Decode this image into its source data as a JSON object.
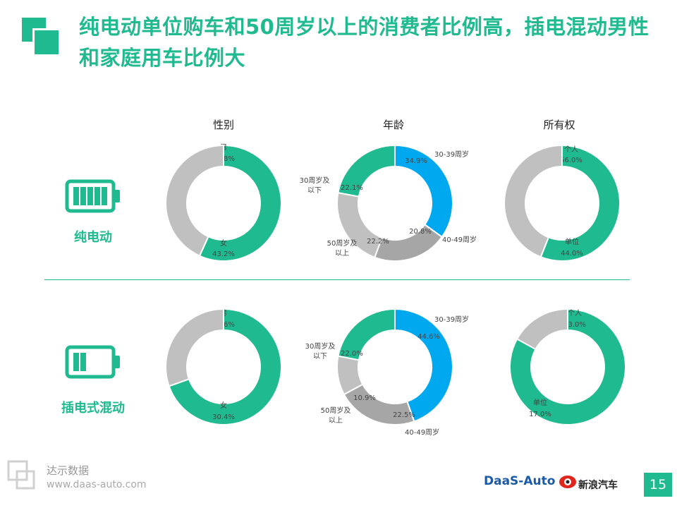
{
  "header": {
    "title": "纯电动单位购车和50周岁以上的消费者比例高，插电混动男性和家庭用车比例大"
  },
  "columns": [
    "性别",
    "年龄",
    "所有权"
  ],
  "rows": [
    {
      "label": "纯电动",
      "icon": "full-battery-icon"
    },
    {
      "label": "插电式混动",
      "icon": "half-battery-icon"
    }
  ],
  "colors": {
    "accent": "#1fba8f",
    "blue": "#00a9ef",
    "light_gray": "#c0c0c0",
    "mid_gray": "#a6a6a6",
    "dark_gray": "#9a9a9a"
  },
  "chart_data": [
    {
      "type": "pie",
      "donut": true,
      "row": "纯电动",
      "title": "性别",
      "slices": [
        {
          "label": "男",
          "value": 56.8,
          "color": "#1fba8f"
        },
        {
          "label": "女",
          "value": 43.2,
          "color": "#c0c0c0"
        }
      ]
    },
    {
      "type": "pie",
      "donut": true,
      "row": "纯电动",
      "title": "年龄",
      "slices": [
        {
          "label": "30-39周岁",
          "value": 34.9,
          "color": "#00a9ef"
        },
        {
          "label": "40-49周岁",
          "value": 20.8,
          "color": "#a6a6a6"
        },
        {
          "label": "50周岁及以上",
          "value": 22.2,
          "color": "#c0c0c0"
        },
        {
          "label": "30周岁及以下",
          "value": 22.1,
          "color": "#1fba8f"
        }
      ]
    },
    {
      "type": "pie",
      "donut": true,
      "row": "纯电动",
      "title": "所有权",
      "slices": [
        {
          "label": "个人",
          "value": 56.0,
          "color": "#1fba8f"
        },
        {
          "label": "单位",
          "value": 44.0,
          "color": "#c0c0c0"
        }
      ]
    },
    {
      "type": "pie",
      "donut": true,
      "row": "插电式混动",
      "title": "性别",
      "slices": [
        {
          "label": "男",
          "value": 69.6,
          "color": "#1fba8f"
        },
        {
          "label": "女",
          "value": 30.4,
          "color": "#c0c0c0"
        }
      ]
    },
    {
      "type": "pie",
      "donut": true,
      "row": "插电式混动",
      "title": "年龄",
      "slices": [
        {
          "label": "30-39周岁",
          "value": 44.6,
          "color": "#00a9ef"
        },
        {
          "label": "40-49周岁",
          "value": 22.5,
          "color": "#a6a6a6"
        },
        {
          "label": "50周岁及以上",
          "value": 10.9,
          "color": "#c0c0c0"
        },
        {
          "label": "30周岁及以下",
          "value": 22.0,
          "color": "#1fba8f"
        }
      ]
    },
    {
      "type": "pie",
      "donut": true,
      "row": "插电式混动",
      "title": "所有权",
      "slices": [
        {
          "label": "个人",
          "value": 83.0,
          "color": "#1fba8f"
        },
        {
          "label": "单位",
          "value": 17.0,
          "color": "#c0c0c0"
        }
      ]
    }
  ],
  "footer": {
    "brand": "达示数据",
    "url": "www.daas-auto.com",
    "partner1": "DaaS-Auto",
    "partner2": "新浪汽车",
    "page": "15"
  }
}
